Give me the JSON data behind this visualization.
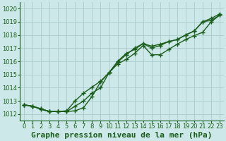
{
  "title": "Graphe pression niveau de la mer (hPa)",
  "background_color": "#cce8e8",
  "plot_bg_color": "#cce8e8",
  "grid_color": "#aacccc",
  "line_color": "#1a5c1a",
  "xlim": [
    -0.5,
    23.5
  ],
  "ylim": [
    1011.5,
    1020.5
  ],
  "yticks": [
    1012,
    1013,
    1014,
    1015,
    1016,
    1017,
    1018,
    1019,
    1020
  ],
  "xticks": [
    0,
    1,
    2,
    3,
    4,
    5,
    6,
    7,
    8,
    9,
    10,
    11,
    12,
    13,
    14,
    15,
    16,
    17,
    18,
    19,
    20,
    21,
    22,
    23
  ],
  "series": [
    [
      1012.7,
      1012.6,
      1012.4,
      1012.2,
      1012.2,
      1012.2,
      1012.6,
      1013.0,
      1013.6,
      1014.0,
      1015.15,
      1016.0,
      1016.6,
      1016.9,
      1017.35,
      1017.15,
      1017.3,
      1017.5,
      1017.65,
      1018.0,
      1018.3,
      1019.0,
      1019.1,
      1019.5
    ],
    [
      1012.7,
      1012.6,
      1012.35,
      1012.2,
      1012.2,
      1012.2,
      1012.25,
      1012.5,
      1013.35,
      1014.45,
      1015.15,
      1015.8,
      1016.15,
      1016.6,
      1017.2,
      1016.5,
      1016.5,
      1016.9,
      1017.3,
      1017.65,
      1017.95,
      1018.2,
      1019.0,
      1019.5
    ],
    [
      1012.7,
      1012.6,
      1012.4,
      1012.2,
      1012.2,
      1012.25,
      1013.0,
      1013.6,
      1014.05,
      1014.5,
      1015.15,
      1015.95,
      1016.5,
      1017.0,
      1017.35,
      1017.0,
      1017.2,
      1017.5,
      1017.65,
      1018.0,
      1018.3,
      1019.0,
      1019.25,
      1019.6
    ]
  ],
  "marker": "+",
  "markersize": 4,
  "linewidth": 1.0,
  "markeredgewidth": 1.0,
  "title_fontsize": 8,
  "tick_fontsize": 6
}
